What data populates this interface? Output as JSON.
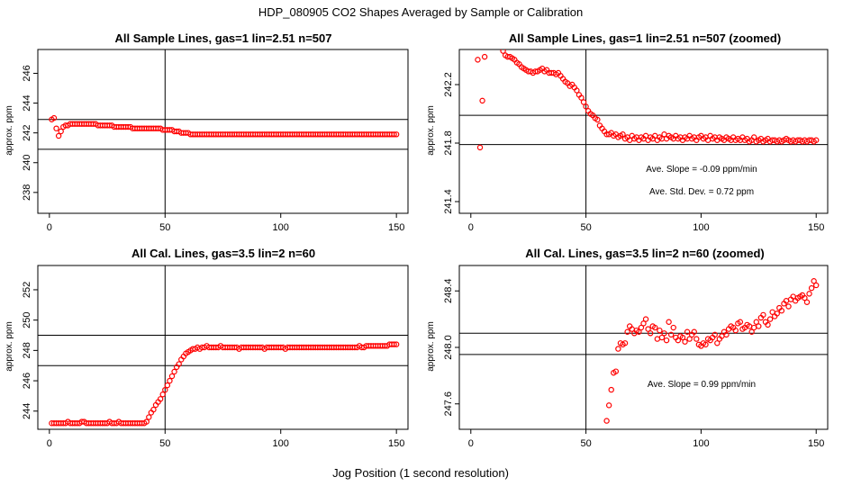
{
  "figure": {
    "suptitle": "HDP_080905  CO2 Shapes Averaged by Sample or Calibration",
    "xlabel": "Jog Position (1 second resolution)"
  },
  "chart_data": [
    {
      "type": "scatter",
      "title": "All Sample Lines, gas=1 lin=2.51 n=507",
      "ylabel": "approx. ppm",
      "xlim": [
        -5,
        155
      ],
      "ylim": [
        236.6,
        247.6
      ],
      "xticks": [
        0,
        50,
        100,
        150
      ],
      "yticks": [
        238,
        240,
        242,
        244,
        246
      ],
      "hlines": [
        242.9,
        240.9
      ],
      "vline": 50,
      "annotations": [],
      "marker_color": "#ff0000",
      "x": [
        1,
        2,
        3,
        4,
        5,
        6,
        7,
        8,
        9,
        10,
        11,
        12,
        13,
        14,
        15,
        16,
        17,
        18,
        19,
        20,
        21,
        22,
        23,
        24,
        25,
        26,
        27,
        28,
        29,
        30,
        31,
        32,
        33,
        34,
        35,
        36,
        37,
        38,
        39,
        40,
        41,
        42,
        43,
        44,
        45,
        46,
        47,
        48,
        49,
        50,
        51,
        52,
        53,
        54,
        55,
        56,
        57,
        58,
        59,
        60,
        61,
        62,
        63,
        64,
        65,
        66,
        67,
        68,
        69,
        70,
        71,
        72,
        73,
        74,
        75,
        76,
        77,
        78,
        79,
        80,
        81,
        82,
        83,
        84,
        85,
        86,
        87,
        88,
        89,
        90,
        91,
        92,
        93,
        94,
        95,
        96,
        97,
        98,
        99,
        100,
        101,
        102,
        103,
        104,
        105,
        106,
        107,
        108,
        109,
        110,
        111,
        112,
        113,
        114,
        115,
        116,
        117,
        118,
        119,
        120,
        121,
        122,
        123,
        124,
        125,
        126,
        127,
        128,
        129,
        130,
        131,
        132,
        133,
        134,
        135,
        136,
        137,
        138,
        139,
        140,
        141,
        142,
        143,
        144,
        145,
        146,
        147,
        148,
        149,
        150
      ],
      "y": [
        242.9,
        243.0,
        242.3,
        241.8,
        242.1,
        242.4,
        242.5,
        242.5,
        242.6,
        242.6,
        242.6,
        242.6,
        242.6,
        242.6,
        242.6,
        242.6,
        242.6,
        242.6,
        242.6,
        242.6,
        242.5,
        242.5,
        242.5,
        242.5,
        242.5,
        242.5,
        242.5,
        242.4,
        242.4,
        242.4,
        242.4,
        242.4,
        242.4,
        242.4,
        242.4,
        242.3,
        242.3,
        242.3,
        242.3,
        242.3,
        242.3,
        242.3,
        242.3,
        242.3,
        242.3,
        242.3,
        242.3,
        242.3,
        242.2,
        242.2,
        242.2,
        242.2,
        242.2,
        242.1,
        242.1,
        242.1,
        242.0,
        242.0,
        242.0,
        242.0,
        241.9,
        241.9,
        241.9,
        241.9,
        241.9,
        241.9,
        241.9,
        241.9,
        241.9,
        241.9,
        241.9,
        241.9,
        241.9,
        241.9,
        241.9,
        241.9,
        241.9,
        241.9,
        241.9,
        241.9,
        241.9,
        241.9,
        241.9,
        241.9,
        241.9,
        241.9,
        241.9,
        241.9,
        241.9,
        241.9,
        241.9,
        241.9,
        241.9,
        241.9,
        241.9,
        241.9,
        241.9,
        241.9,
        241.9,
        241.9,
        241.9,
        241.9,
        241.9,
        241.9,
        241.9,
        241.9,
        241.9,
        241.9,
        241.9,
        241.9,
        241.9,
        241.9,
        241.9,
        241.9,
        241.9,
        241.9,
        241.9,
        241.9,
        241.9,
        241.9,
        241.9,
        241.9,
        241.9,
        241.9,
        241.9,
        241.9,
        241.9,
        241.9,
        241.9,
        241.9,
        241.9,
        241.9,
        241.9,
        241.9,
        241.9,
        241.9,
        241.9,
        241.9,
        241.9,
        241.9,
        241.9,
        241.9,
        241.9,
        241.9,
        241.9,
        241.9,
        241.9,
        241.9,
        241.9,
        241.9
      ]
    },
    {
      "type": "scatter",
      "title": "All Sample Lines, gas=1 lin=2.51 n=507 (zoomed)",
      "ylabel": "approx. ppm",
      "xlim": [
        -5,
        155
      ],
      "ylim": [
        241.32,
        242.44
      ],
      "xticks": [
        0,
        50,
        100,
        150
      ],
      "yticks": [
        241.4,
        241.8,
        242.2
      ],
      "ytick_labels": [
        "241.4",
        "241.8",
        "242.2"
      ],
      "hlines": [
        241.99,
        241.79
      ],
      "vline": 50,
      "annotations": [
        "Ave. Slope =  -0.09  ppm/min",
        "Ave. Std. Dev. =  0.72  ppm"
      ],
      "marker_color": "#ff0000",
      "x": [
        3,
        4,
        5,
        6,
        14,
        15,
        16,
        17,
        18,
        19,
        20,
        21,
        22,
        23,
        24,
        25,
        26,
        27,
        28,
        29,
        30,
        31,
        32,
        33,
        34,
        35,
        36,
        37,
        38,
        39,
        40,
        41,
        42,
        43,
        44,
        45,
        46,
        47,
        48,
        49,
        50,
        51,
        52,
        53,
        54,
        55,
        56,
        57,
        58,
        59,
        60,
        61,
        62,
        63,
        64,
        65,
        66,
        67,
        68,
        69,
        70,
        71,
        72,
        73,
        74,
        75,
        76,
        77,
        78,
        79,
        80,
        81,
        82,
        83,
        84,
        85,
        86,
        87,
        88,
        89,
        90,
        91,
        92,
        93,
        94,
        95,
        96,
        97,
        98,
        99,
        100,
        101,
        102,
        103,
        104,
        105,
        106,
        107,
        108,
        109,
        110,
        111,
        112,
        113,
        114,
        115,
        116,
        117,
        118,
        119,
        120,
        121,
        122,
        123,
        124,
        125,
        126,
        127,
        128,
        129,
        130,
        131,
        132,
        133,
        134,
        135,
        136,
        137,
        138,
        139,
        140,
        141,
        142,
        143,
        144,
        145,
        146,
        147,
        148,
        149,
        150
      ],
      "y": [
        242.37,
        241.77,
        242.09,
        242.39,
        242.43,
        242.4,
        242.39,
        242.39,
        242.38,
        242.37,
        242.35,
        242.34,
        242.32,
        242.31,
        242.3,
        242.29,
        242.29,
        242.28,
        242.29,
        242.29,
        242.3,
        242.31,
        242.29,
        242.3,
        242.28,
        242.28,
        242.28,
        242.27,
        242.28,
        242.26,
        242.24,
        242.22,
        242.21,
        242.19,
        242.2,
        242.18,
        242.16,
        242.13,
        242.11,
        242.08,
        242.05,
        242.02,
        242.0,
        241.99,
        241.97,
        241.96,
        241.92,
        241.9,
        241.88,
        241.86,
        241.86,
        241.87,
        241.85,
        241.86,
        241.84,
        241.85,
        241.86,
        241.83,
        241.84,
        241.82,
        241.85,
        241.83,
        241.84,
        241.82,
        241.84,
        241.83,
        241.85,
        241.82,
        241.84,
        241.83,
        241.85,
        241.82,
        241.84,
        241.83,
        241.86,
        241.83,
        241.85,
        241.84,
        241.83,
        241.85,
        241.83,
        241.84,
        241.82,
        241.84,
        241.83,
        241.85,
        241.83,
        241.84,
        241.82,
        241.84,
        241.85,
        241.83,
        241.84,
        241.82,
        241.85,
        241.83,
        241.84,
        241.82,
        241.84,
        241.83,
        241.82,
        241.84,
        241.83,
        241.82,
        241.84,
        241.82,
        241.83,
        241.82,
        241.84,
        241.82,
        241.83,
        241.81,
        241.82,
        241.84,
        241.81,
        241.82,
        241.83,
        241.81,
        241.82,
        241.83,
        241.81,
        241.82,
        241.82,
        241.81,
        241.82,
        241.81,
        241.82,
        241.83,
        241.82,
        241.81,
        241.82,
        241.81,
        241.82,
        241.82,
        241.81,
        241.82,
        241.81,
        241.82,
        241.82,
        241.81,
        241.82
      ]
    },
    {
      "type": "scatter",
      "title": "All Cal. Lines, gas=3.5 lin=2 n=60",
      "ylabel": "approx. ppm",
      "xlim": [
        -5,
        155
      ],
      "ylim": [
        242.8,
        253.6
      ],
      "xticks": [
        0,
        50,
        100,
        150
      ],
      "yticks": [
        244,
        246,
        248,
        250,
        252
      ],
      "hlines": [
        249.0,
        247.0
      ],
      "vline": 50,
      "annotations": [],
      "marker_color": "#ff0000",
      "x": [
        1,
        2,
        3,
        4,
        5,
        6,
        7,
        8,
        9,
        10,
        11,
        12,
        13,
        14,
        15,
        16,
        17,
        18,
        19,
        20,
        21,
        22,
        23,
        24,
        25,
        26,
        27,
        28,
        29,
        30,
        31,
        32,
        33,
        34,
        35,
        36,
        37,
        38,
        39,
        40,
        41,
        42,
        43,
        44,
        45,
        46,
        47,
        48,
        49,
        50,
        51,
        52,
        53,
        54,
        55,
        56,
        57,
        58,
        59,
        60,
        61,
        62,
        63,
        64,
        65,
        66,
        67,
        68,
        69,
        70,
        71,
        72,
        73,
        74,
        75,
        76,
        77,
        78,
        79,
        80,
        81,
        82,
        83,
        84,
        85,
        86,
        87,
        88,
        89,
        90,
        91,
        92,
        93,
        94,
        95,
        96,
        97,
        98,
        99,
        100,
        101,
        102,
        103,
        104,
        105,
        106,
        107,
        108,
        109,
        110,
        111,
        112,
        113,
        114,
        115,
        116,
        117,
        118,
        119,
        120,
        121,
        122,
        123,
        124,
        125,
        126,
        127,
        128,
        129,
        130,
        131,
        132,
        133,
        134,
        135,
        136,
        137,
        138,
        139,
        140,
        141,
        142,
        143,
        144,
        145,
        146,
        147,
        148,
        149,
        150
      ],
      "y": [
        243.2,
        243.2,
        243.2,
        243.2,
        243.2,
        243.2,
        243.2,
        243.3,
        243.2,
        243.2,
        243.2,
        243.2,
        243.2,
        243.3,
        243.3,
        243.2,
        243.2,
        243.2,
        243.2,
        243.2,
        243.2,
        243.2,
        243.2,
        243.2,
        243.2,
        243.3,
        243.2,
        243.2,
        243.2,
        243.3,
        243.2,
        243.2,
        243.2,
        243.2,
        243.2,
        243.2,
        243.2,
        243.2,
        243.2,
        243.2,
        243.2,
        243.3,
        243.6,
        243.9,
        244.1,
        244.4,
        244.6,
        244.8,
        245.1,
        245.4,
        245.7,
        246.0,
        246.3,
        246.6,
        246.9,
        247.1,
        247.4,
        247.6,
        247.8,
        247.9,
        248.0,
        248.1,
        248.1,
        248.2,
        248.1,
        248.2,
        248.2,
        248.3,
        248.2,
        248.2,
        248.2,
        248.2,
        248.2,
        248.3,
        248.2,
        248.2,
        248.2,
        248.2,
        248.2,
        248.2,
        248.2,
        248.1,
        248.2,
        248.2,
        248.2,
        248.2,
        248.2,
        248.2,
        248.2,
        248.2,
        248.2,
        248.2,
        248.1,
        248.2,
        248.2,
        248.2,
        248.2,
        248.2,
        248.2,
        248.2,
        248.2,
        248.1,
        248.2,
        248.2,
        248.2,
        248.2,
        248.2,
        248.2,
        248.2,
        248.2,
        248.2,
        248.2,
        248.2,
        248.2,
        248.2,
        248.2,
        248.2,
        248.2,
        248.2,
        248.2,
        248.2,
        248.2,
        248.2,
        248.2,
        248.2,
        248.2,
        248.2,
        248.2,
        248.2,
        248.2,
        248.2,
        248.2,
        248.2,
        248.3,
        248.2,
        248.2,
        248.3,
        248.3,
        248.3,
        248.3,
        248.3,
        248.3,
        248.3,
        248.3,
        248.3,
        248.3,
        248.4,
        248.4,
        248.4,
        248.4
      ]
    },
    {
      "type": "scatter",
      "title": "All Cal. Lines, gas=3.5 lin=2 n=60 (zoomed)",
      "ylabel": "approx. ppm",
      "xlim": [
        -5,
        155
      ],
      "ylim": [
        247.42,
        248.58
      ],
      "xticks": [
        0,
        50,
        100,
        150
      ],
      "yticks": [
        247.6,
        248.0,
        248.4
      ],
      "ytick_labels": [
        "247.6",
        "248.0",
        "248.4"
      ],
      "hlines": [
        248.1,
        247.95
      ],
      "vline": 50,
      "annotations": [
        "Ave. Slope =  0.99  ppm/min"
      ],
      "marker_color": "#ff0000",
      "x": [
        59,
        60,
        61,
        62,
        63,
        64,
        65,
        66,
        67,
        68,
        69,
        70,
        71,
        72,
        73,
        74,
        75,
        76,
        77,
        78,
        79,
        80,
        81,
        82,
        83,
        84,
        85,
        86,
        87,
        88,
        89,
        90,
        91,
        92,
        93,
        94,
        95,
        96,
        97,
        98,
        99,
        100,
        101,
        102,
        103,
        104,
        105,
        106,
        107,
        108,
        109,
        110,
        111,
        112,
        113,
        114,
        115,
        116,
        117,
        118,
        119,
        120,
        121,
        122,
        123,
        124,
        125,
        126,
        127,
        128,
        129,
        130,
        131,
        132,
        133,
        134,
        135,
        136,
        137,
        138,
        139,
        140,
        141,
        142,
        143,
        144,
        145,
        146,
        147,
        148,
        149,
        150
      ],
      "y": [
        247.48,
        247.59,
        247.7,
        247.82,
        247.83,
        247.99,
        248.03,
        248.02,
        248.03,
        248.11,
        248.15,
        248.13,
        248.1,
        248.12,
        248.11,
        248.14,
        248.17,
        248.2,
        248.13,
        248.1,
        248.15,
        248.14,
        248.06,
        248.12,
        248.07,
        248.1,
        248.05,
        248.18,
        248.09,
        248.14,
        248.07,
        248.05,
        248.08,
        248.07,
        248.04,
        248.11,
        248.06,
        248.09,
        248.11,
        248.06,
        248.02,
        248.01,
        248.03,
        248.02,
        248.06,
        248.05,
        248.07,
        248.09,
        248.03,
        248.06,
        248.08,
        248.11,
        248.09,
        248.13,
        248.15,
        248.14,
        248.12,
        248.17,
        248.18,
        248.13,
        248.14,
        248.16,
        248.15,
        248.11,
        248.14,
        248.18,
        248.15,
        248.21,
        248.23,
        248.18,
        248.16,
        248.2,
        248.25,
        248.22,
        248.24,
        248.28,
        248.26,
        248.31,
        248.33,
        248.29,
        248.34,
        248.36,
        248.33,
        248.35,
        248.36,
        248.37,
        248.35,
        248.32,
        248.38,
        248.42,
        248.47,
        248.44
      ]
    }
  ]
}
